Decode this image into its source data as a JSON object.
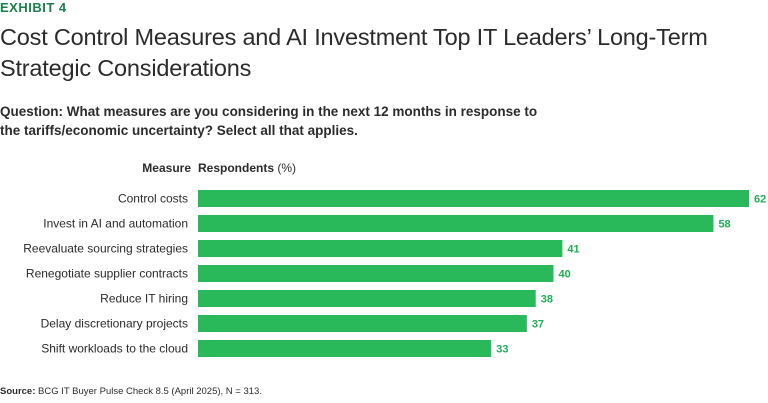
{
  "header": {
    "exhibit_label": "EXHIBIT 4",
    "title": "Cost Control Measures and AI Investment Top IT Leaders’ Long-Term Strategic Considerations",
    "question": "Question: What measures are you considering in the next 12 months in response to the tariffs/economic uncertainty? Select all that applies."
  },
  "source": {
    "label": "Source:",
    "text": "BCG IT Buyer Pulse Check 8.5 (April 2025), N = 313."
  },
  "colors": {
    "accent": "#1a7f4b",
    "bar": "#29b95a",
    "value_label": "#1fae57"
  },
  "chart_data": {
    "type": "bar",
    "orientation": "horizontal",
    "column_headers": {
      "category": "Measure",
      "value_bold": "Respondents",
      "value_unit": "(%)"
    },
    "categories": [
      "Control costs",
      "Invest in AI and automation",
      "Reevaluate sourcing strategies",
      "Renegotiate supplier contracts",
      "Reduce IT hiring",
      "Delay discretionary projects",
      "Shift workloads to the cloud"
    ],
    "values": [
      62,
      58,
      41,
      40,
      38,
      37,
      33
    ],
    "xlim": [
      0,
      62
    ],
    "grid": false,
    "legend": "none"
  }
}
